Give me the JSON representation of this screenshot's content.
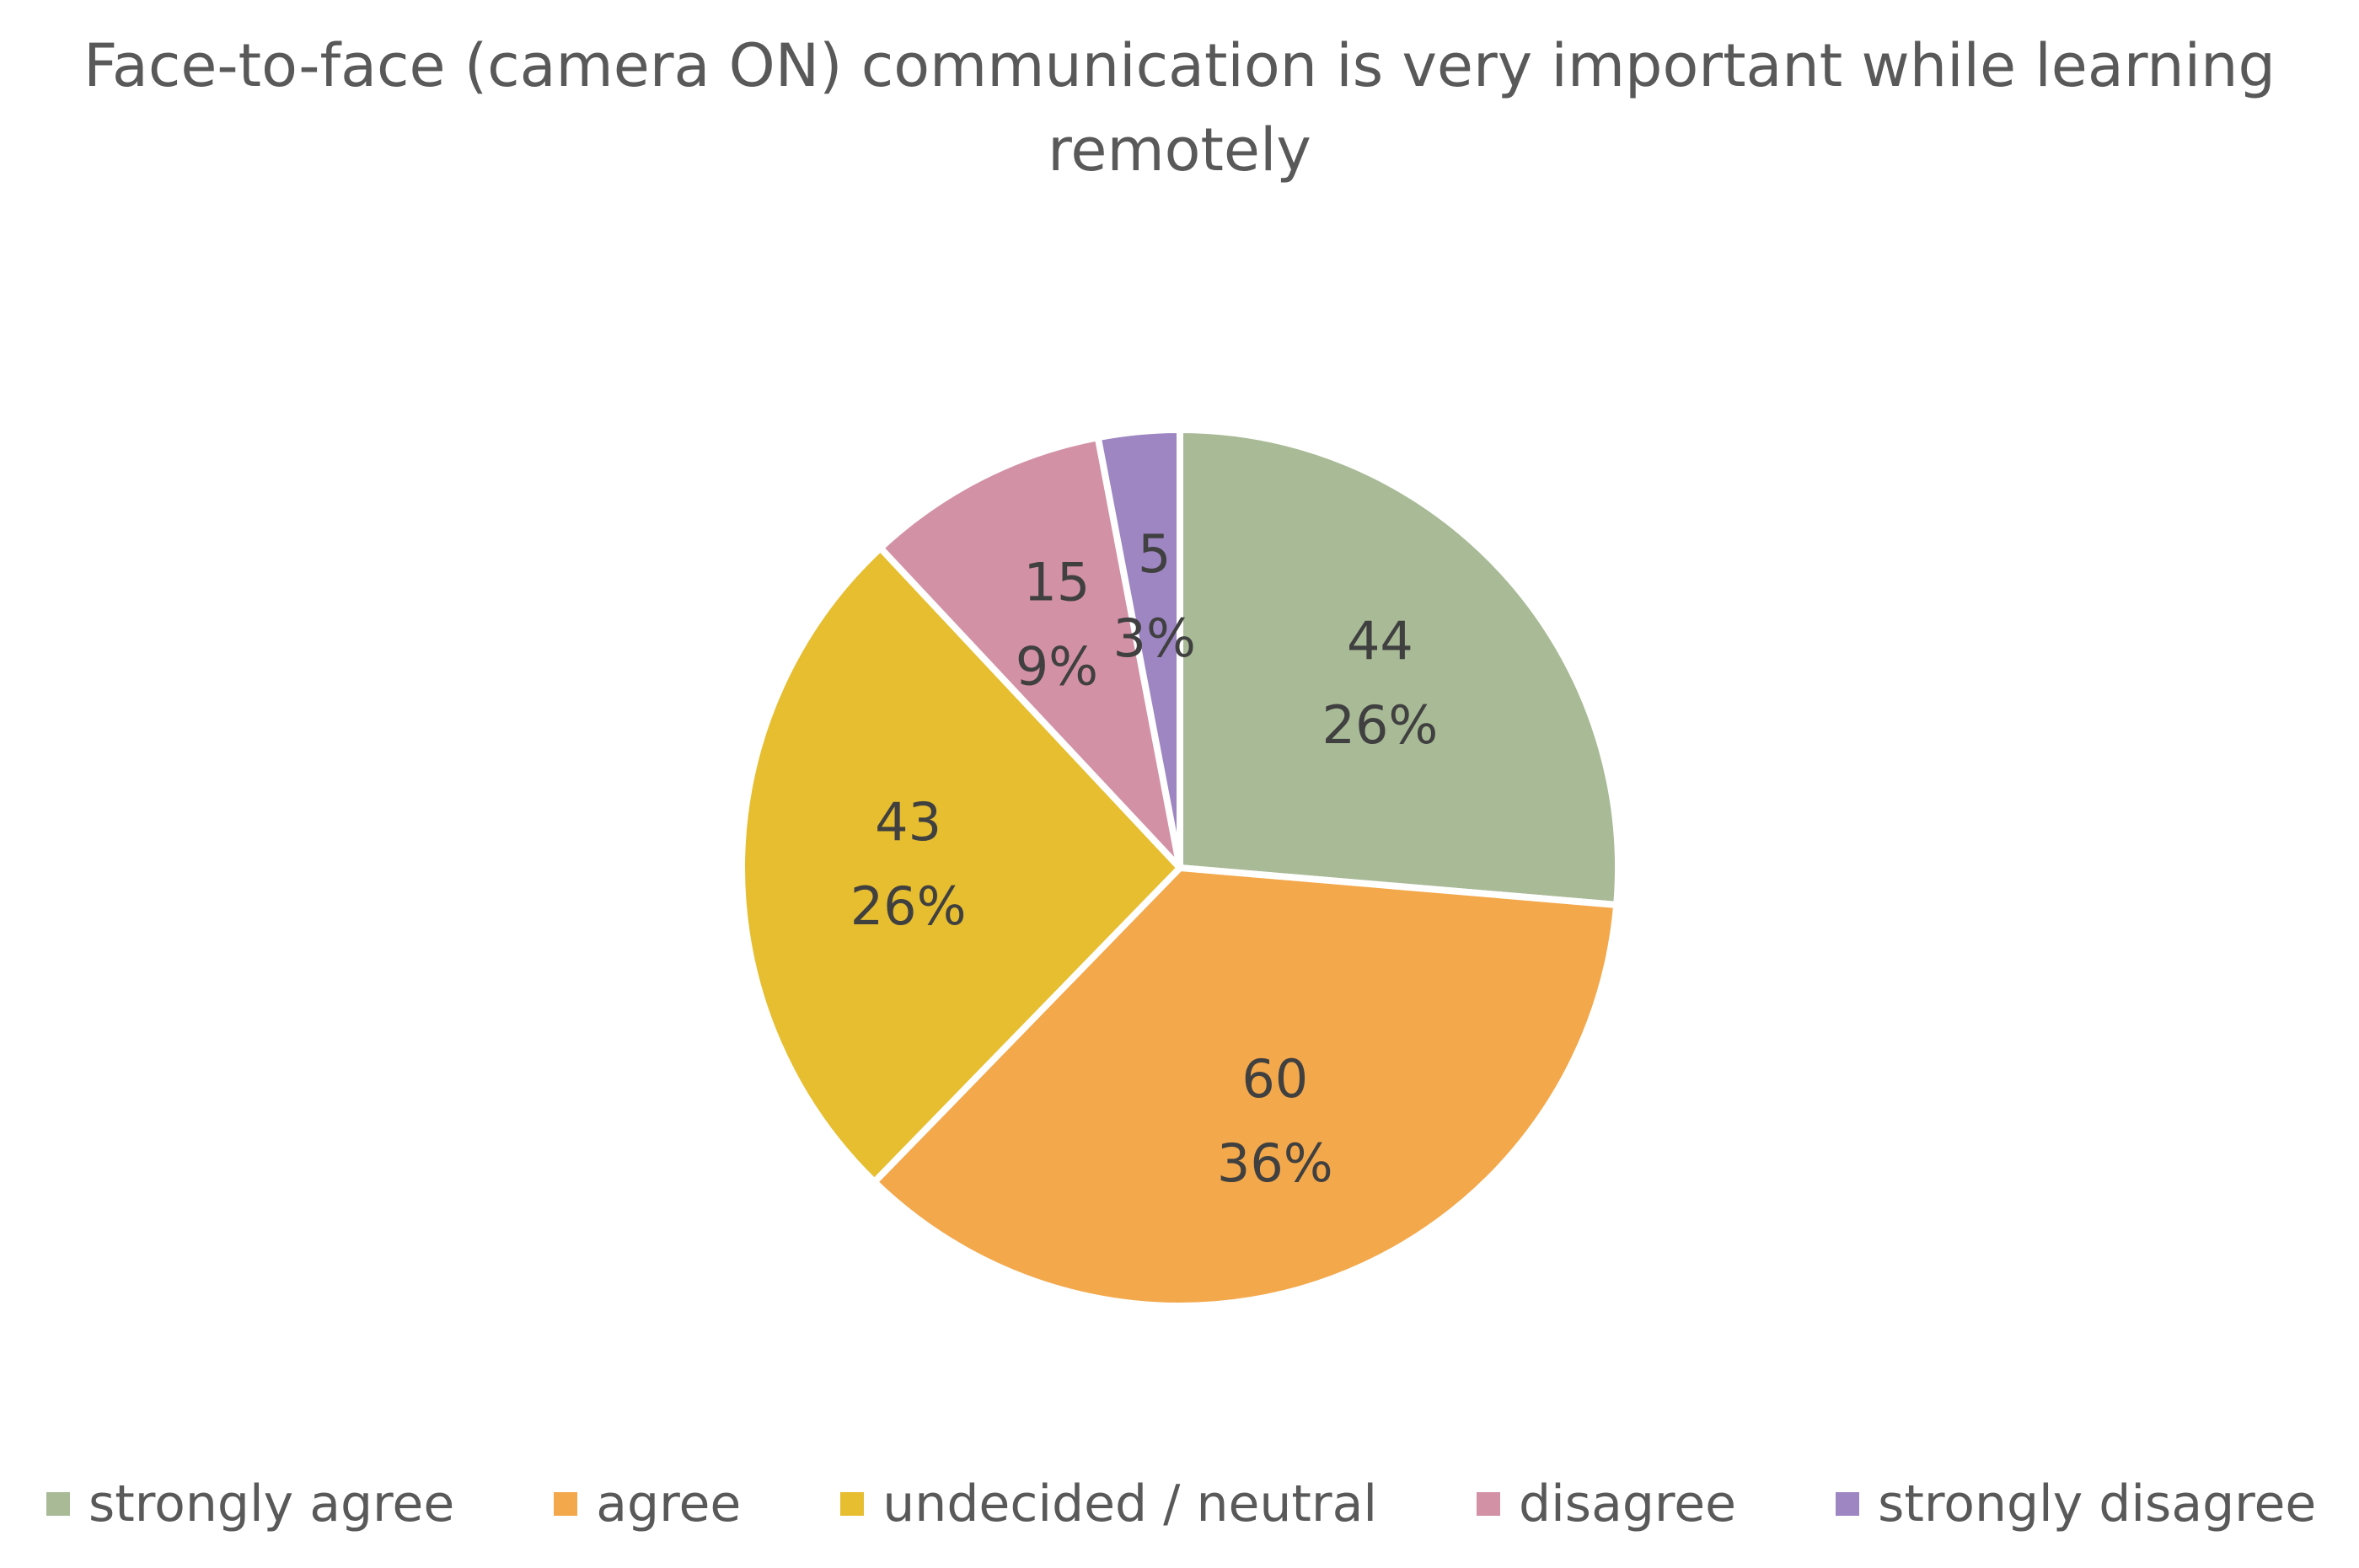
{
  "chart_data": {
    "type": "pie",
    "title_lines": [
      "Face-to-face (camera ON) communication is very important while learning",
      "remotely"
    ],
    "categories": [
      "strongly agree",
      "agree",
      "undecided / neutral",
      "disagree",
      "strongly disagree"
    ],
    "values": [
      44,
      60,
      43,
      15,
      5
    ],
    "percent_labels": [
      "26%",
      "36%",
      "26%",
      "9%",
      "3%"
    ],
    "colors": [
      "#A9BA96",
      "#F3A84B",
      "#E6BE30",
      "#D391A6",
      "#9E86C3"
    ],
    "legend_position": "bottom"
  }
}
